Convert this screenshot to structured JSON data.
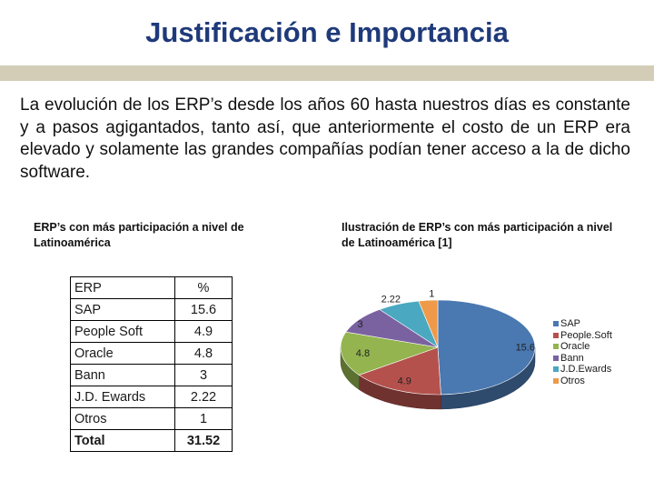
{
  "page": {
    "title": "Justificación e Importancia",
    "paragraph": "La evolución de los ERP’s desde los años 60 hasta nuestros días es constante y a pasos agigantados, tanto así, que anteriormente el costo de un ERP era elevado y solamente las grandes compañías podían tener acceso a la de dicho software."
  },
  "table": {
    "caption": "ERP’s con más participación a nivel de Latinoamérica",
    "headers": [
      "ERP",
      "%"
    ],
    "rows": [
      [
        "SAP",
        "15.6"
      ],
      [
        "People Soft",
        "4.9"
      ],
      [
        "Oracle",
        "4.8"
      ],
      [
        "Bann",
        "3"
      ],
      [
        "J.D. Ewards",
        "2.22"
      ],
      [
        "Otros",
        "1"
      ]
    ],
    "total": [
      "Total",
      "31.52"
    ]
  },
  "chart_caption": "Ilustración de ERP’s con más participación a nivel de Latinoamérica [1]",
  "chart_data": {
    "type": "pie",
    "categories": [
      "SAP",
      "People.Soft",
      "Oracle",
      "Bann",
      "J.D.Ewards",
      "Otros"
    ],
    "values": [
      15.6,
      4.9,
      4.8,
      3,
      2.22,
      1
    ],
    "data_labels": [
      "15.6",
      "4.9",
      "4.8",
      "3",
      "2.22",
      "1"
    ],
    "colors": [
      "#4a78b0",
      "#b5514c",
      "#93b44f",
      "#7a62a0",
      "#4aa8c0",
      "#ee9a4a"
    ],
    "legend_position": "right",
    "style": "3d-tilted"
  }
}
